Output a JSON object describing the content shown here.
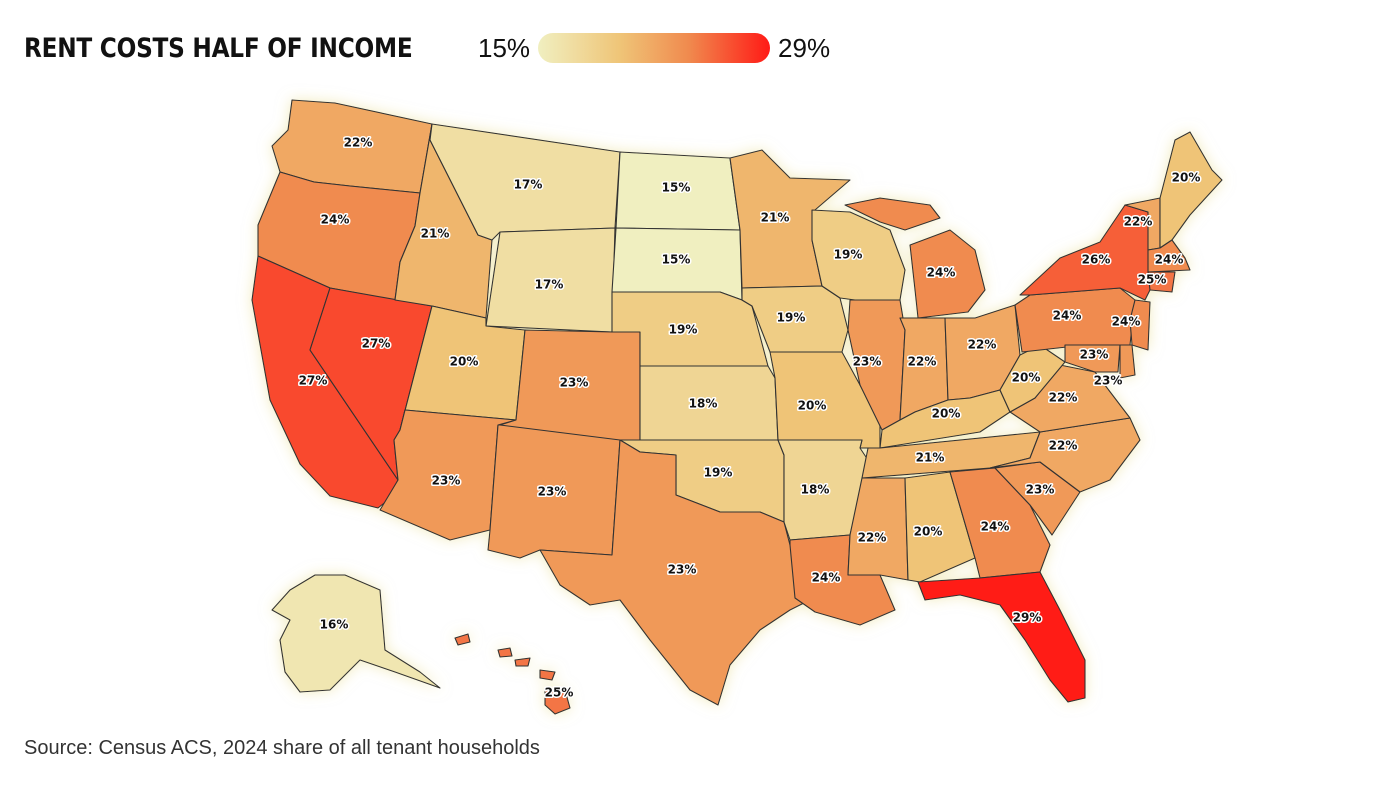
{
  "title": "RENT COSTS HALF OF INCOME",
  "legend": {
    "min_label": "15%",
    "max_label": "29%",
    "min": 15,
    "max": 29
  },
  "source": "Source: Census ACS, 2024 share of all tenant households",
  "colors": {
    "low": "#f0efc0",
    "mid_low": "#efc578",
    "mid_high": "#f08a4e",
    "high": "#ff1a16"
  },
  "states": [
    {
      "name": "Washington",
      "label": "22%",
      "value": 22
    },
    {
      "name": "Oregon",
      "label": "24%",
      "value": 24
    },
    {
      "name": "California",
      "label": "27%",
      "value": 27
    },
    {
      "name": "Nevada",
      "label": "27%",
      "value": 27
    },
    {
      "name": "Idaho",
      "label": "21%",
      "value": 21
    },
    {
      "name": "Montana",
      "label": "17%",
      "value": 17
    },
    {
      "name": "Wyoming",
      "label": "17%",
      "value": 17
    },
    {
      "name": "Utah",
      "label": "20%",
      "value": 20
    },
    {
      "name": "Arizona",
      "label": "23%",
      "value": 23
    },
    {
      "name": "Colorado",
      "label": "23%",
      "value": 23
    },
    {
      "name": "New Mexico",
      "label": "23%",
      "value": 23
    },
    {
      "name": "North Dakota",
      "label": "15%",
      "value": 15
    },
    {
      "name": "South Dakota",
      "label": "15%",
      "value": 15
    },
    {
      "name": "Nebraska",
      "label": "19%",
      "value": 19
    },
    {
      "name": "Kansas",
      "label": "18%",
      "value": 18
    },
    {
      "name": "Oklahoma",
      "label": "19%",
      "value": 19
    },
    {
      "name": "Texas",
      "label": "23%",
      "value": 23
    },
    {
      "name": "Minnesota",
      "label": "21%",
      "value": 21
    },
    {
      "name": "Iowa",
      "label": "19%",
      "value": 19
    },
    {
      "name": "Missouri",
      "label": "20%",
      "value": 20
    },
    {
      "name": "Arkansas",
      "label": "18%",
      "value": 18
    },
    {
      "name": "Louisiana",
      "label": "24%",
      "value": 24
    },
    {
      "name": "Wisconsin",
      "label": "19%",
      "value": 19
    },
    {
      "name": "Illinois",
      "label": "23%",
      "value": 23
    },
    {
      "name": "Michigan",
      "label": "24%",
      "value": 24
    },
    {
      "name": "Indiana",
      "label": "22%",
      "value": 22
    },
    {
      "name": "Ohio",
      "label": "22%",
      "value": 22
    },
    {
      "name": "Kentucky",
      "label": "20%",
      "value": 20
    },
    {
      "name": "Tennessee",
      "label": "21%",
      "value": 21
    },
    {
      "name": "Mississippi",
      "label": "22%",
      "value": 22
    },
    {
      "name": "Alabama",
      "label": "20%",
      "value": 20
    },
    {
      "name": "Georgia",
      "label": "24%",
      "value": 24
    },
    {
      "name": "Florida",
      "label": "29%",
      "value": 29
    },
    {
      "name": "South Carolina",
      "label": "23%",
      "value": 23
    },
    {
      "name": "North Carolina",
      "label": "22%",
      "value": 22
    },
    {
      "name": "Virginia",
      "label": "22%",
      "value": 22
    },
    {
      "name": "West Virginia",
      "label": "20%",
      "value": 20
    },
    {
      "name": "Pennsylvania",
      "label": "24%",
      "value": 24
    },
    {
      "name": "New York",
      "label": "26%",
      "value": 26
    },
    {
      "name": "New Jersey",
      "label": "24%",
      "value": 24
    },
    {
      "name": "Maryland",
      "label": "23%",
      "value": 23
    },
    {
      "name": "Delaware",
      "label": "23%",
      "value": 23
    },
    {
      "name": "Vermont",
      "label": "22%",
      "value": 22
    },
    {
      "name": "Maine",
      "label": "20%",
      "value": 20
    },
    {
      "name": "Massachusetts",
      "label": "24%",
      "value": 24
    },
    {
      "name": "Connecticut",
      "label": "25%",
      "value": 25
    },
    {
      "name": "Alaska",
      "label": "16%",
      "value": 16
    },
    {
      "name": "Hawaii",
      "label": "25%",
      "value": 25
    }
  ]
}
